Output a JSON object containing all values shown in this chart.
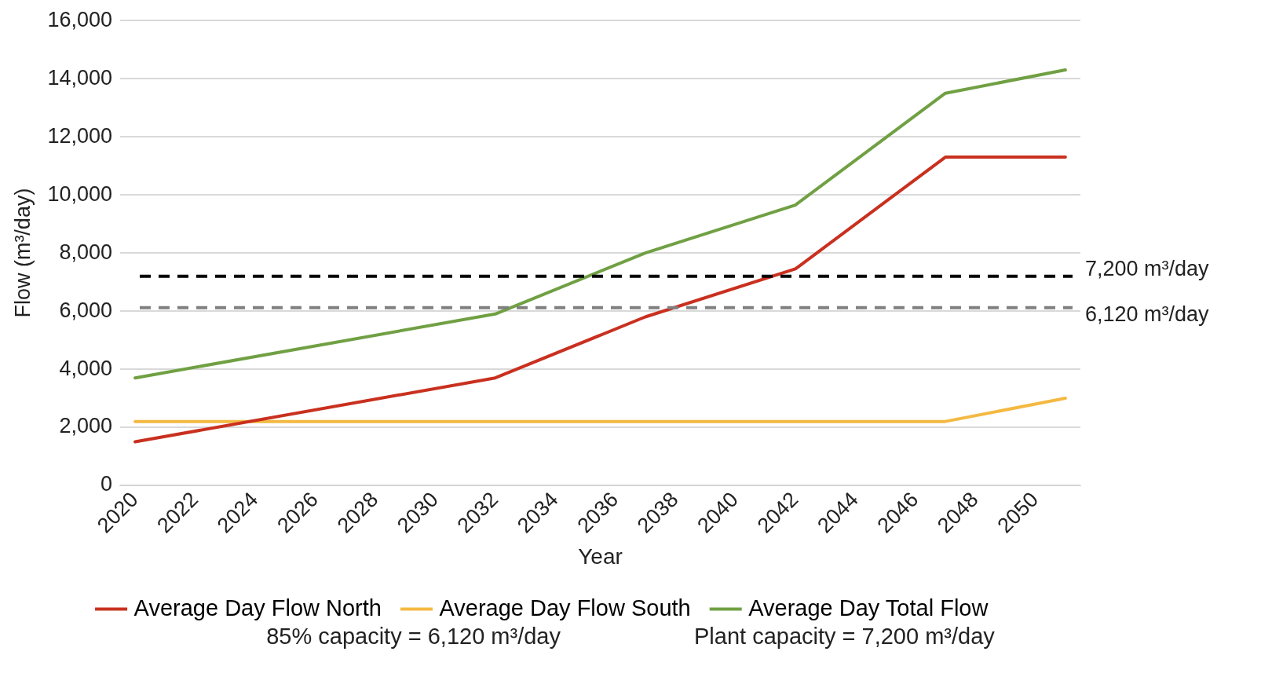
{
  "chart_data": {
    "type": "line",
    "xlabel": "Year",
    "ylabel": "Flow (m³/day)",
    "x": [
      2020,
      2032,
      2037,
      2042,
      2047,
      2051
    ],
    "series": [
      {
        "name": "Average Day Flow North",
        "color": "#c9301f",
        "values": [
          1500,
          3700,
          5800,
          7450,
          11300,
          11300
        ]
      },
      {
        "name": "Average Day Flow South",
        "color": "#f4b942",
        "values": [
          2200,
          2200,
          2200,
          2200,
          2200,
          3000
        ]
      },
      {
        "name": "Average Day Total Flow",
        "color": "#70a043",
        "values": [
          3700,
          5900,
          8000,
          9650,
          13500,
          14300
        ]
      }
    ],
    "xlim": [
      2019.5,
      2051.5
    ],
    "xticks": [
      2020,
      2022,
      2024,
      2026,
      2028,
      2030,
      2032,
      2034,
      2036,
      2038,
      2040,
      2042,
      2044,
      2046,
      2048,
      2050
    ],
    "ylim": [
      0,
      16000
    ],
    "yticks": [
      0,
      {
        "value": 2000,
        "label": "2,000"
      },
      {
        "value": 4000,
        "label": "4,000"
      },
      {
        "value": 6000,
        "label": "6,000"
      },
      {
        "value": 8000,
        "label": "8,000"
      },
      {
        "value": 10000,
        "label": "10,000"
      },
      {
        "value": 12000,
        "label": "12,000"
      },
      {
        "value": 14000,
        "label": "14,000"
      },
      {
        "value": 16000,
        "label": "16,000"
      }
    ],
    "ref_lines": [
      {
        "axis": "y",
        "value": 7200,
        "label": "7,200 m³/day",
        "color": "#000000",
        "line_style": "dashed"
      },
      {
        "axis": "y",
        "value": 6120,
        "label": "6,120 m³/day",
        "color": "#808080",
        "line_style": "dashed"
      }
    ],
    "annotations": [
      "85% capacity = 6,120 m³/day",
      "Plant capacity = 7,200 m³/day"
    ],
    "grid": "y",
    "legend": "bottom",
    "marker": "none",
    "line_style": "solid"
  }
}
